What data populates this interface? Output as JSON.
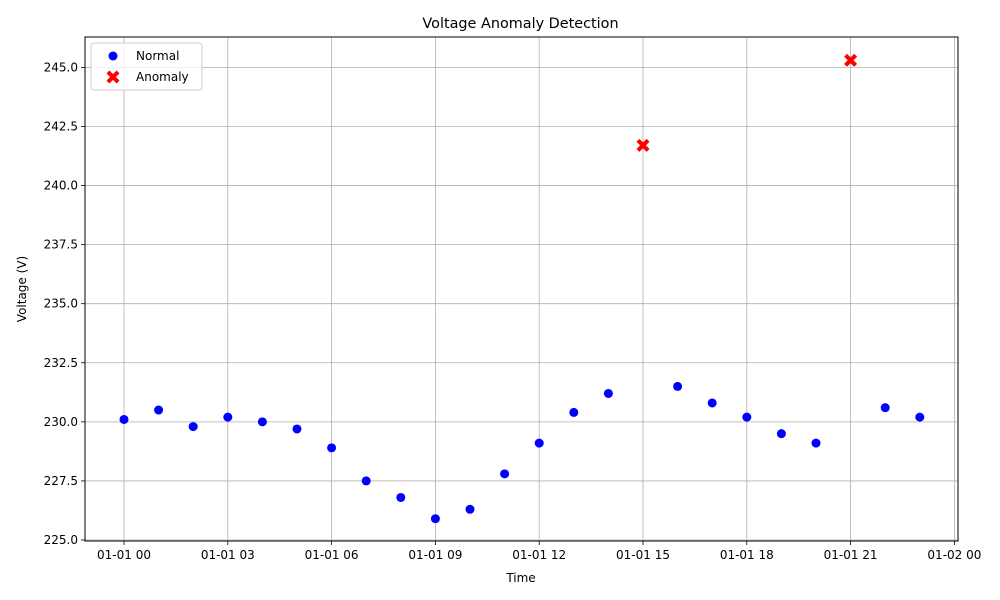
{
  "chart_data": {
    "type": "scatter",
    "title": "Voltage Anomaly Detection",
    "xlabel": "Time",
    "ylabel": "Voltage (V)",
    "xlim": [
      "2023-12-31 22:48",
      "2024-01-02 00:12"
    ],
    "ylim": [
      224.92,
      246.28
    ],
    "x_ticks": [
      "01-01 00",
      "01-01 03",
      "01-01 06",
      "01-01 09",
      "01-01 12",
      "01-01 15",
      "01-01 18",
      "01-01 21",
      "01-02 00"
    ],
    "x_tick_hours": [
      0,
      3,
      6,
      9,
      12,
      15,
      18,
      21,
      24
    ],
    "y_ticks": [
      "225.0",
      "227.5",
      "230.0",
      "232.5",
      "235.0",
      "237.5",
      "240.0",
      "242.5",
      "245.0"
    ],
    "y_tick_values": [
      225.0,
      227.5,
      230.0,
      232.5,
      235.0,
      237.5,
      240.0,
      242.5,
      245.0
    ],
    "grid": true,
    "legend_position": "top-left",
    "series": [
      {
        "name": "Normal",
        "color": "#0000ff",
        "marker": "circle",
        "x": [
          "01-01 00:00",
          "01-01 01:00",
          "01-01 02:00",
          "01-01 03:00",
          "01-01 04:00",
          "01-01 05:00",
          "01-01 06:00",
          "01-01 07:00",
          "01-01 08:00",
          "01-01 09:00",
          "01-01 10:00",
          "01-01 11:00",
          "01-01 12:00",
          "01-01 13:00",
          "01-01 14:00",
          "01-01 16:00",
          "01-01 17:00",
          "01-01 18:00",
          "01-01 19:00",
          "01-01 20:00",
          "01-01 22:00",
          "01-01 23:00"
        ],
        "x_hours": [
          0,
          1,
          2,
          3,
          4,
          5,
          6,
          7,
          8,
          9,
          10,
          11,
          12,
          13,
          14,
          16,
          17,
          18,
          19,
          20,
          22,
          23
        ],
        "y": [
          230.1,
          230.5,
          229.8,
          230.2,
          230.0,
          229.7,
          228.9,
          227.5,
          226.8,
          225.9,
          226.3,
          227.8,
          229.1,
          230.4,
          231.2,
          231.5,
          230.8,
          230.2,
          229.5,
          229.1,
          230.6,
          230.2
        ]
      },
      {
        "name": "Anomaly",
        "color": "#ff0000",
        "marker": "x-filled",
        "x": [
          "01-01 15:00",
          "01-01 21:00"
        ],
        "x_hours": [
          15,
          21
        ],
        "y": [
          241.7,
          245.3
        ]
      }
    ]
  }
}
